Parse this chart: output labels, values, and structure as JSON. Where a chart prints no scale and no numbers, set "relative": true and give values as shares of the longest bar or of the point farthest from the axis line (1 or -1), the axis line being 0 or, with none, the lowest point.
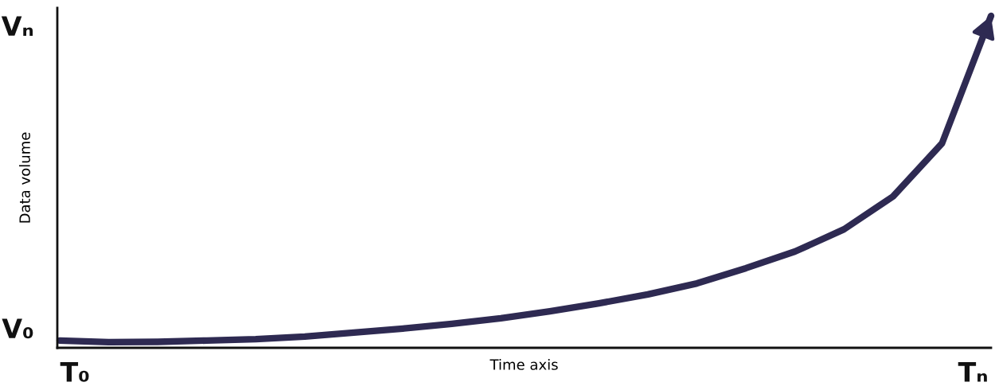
{
  "chart_data": {
    "type": "line",
    "relative": true,
    "xlabel": "Time axis",
    "ylabel": "Data volume",
    "categories": [
      null,
      null,
      null,
      null,
      null,
      null,
      null,
      null,
      null,
      null,
      null,
      null,
      null,
      null,
      null,
      null,
      null,
      null,
      null,
      null
    ],
    "series": [
      {
        "color": "#2e2a52",
        "values": [
          0.022,
          0.017,
          0.018,
          0.022,
          0.026,
          0.034,
          0.046,
          0.058,
          0.072,
          0.089,
          0.11,
          0.134,
          0.161,
          0.194,
          0.24,
          0.29,
          0.357,
          0.456,
          0.616,
          1.0
        ]
      }
    ],
    "annotations": [
      "Vₙ",
      "V₀",
      "T₀",
      "Tₙ"
    ],
    "legend": false,
    "marker": "none",
    "line_style": "solid"
  }
}
